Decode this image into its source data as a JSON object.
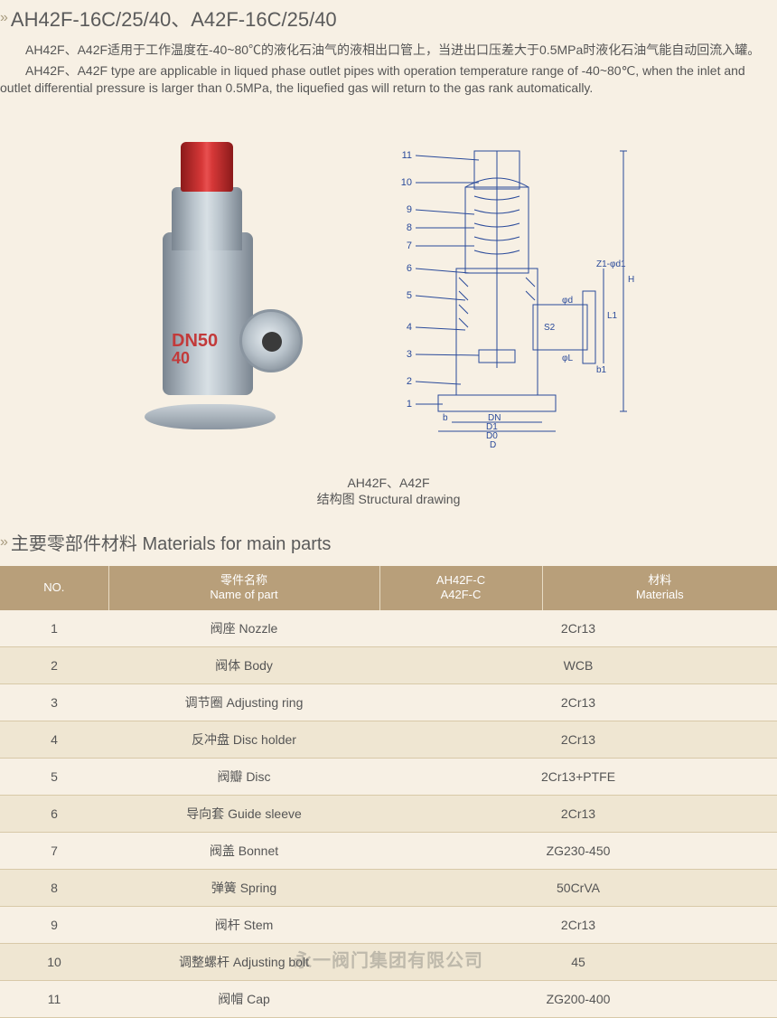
{
  "header": {
    "title": "AH42F-16C/25/40、A42F-16C/25/40"
  },
  "description": {
    "para_cn": "AH42F、A42F适用于工作温度在-40~80℃的液化石油气的液相出口管上，当进出口压差大于0.5MPa时液化石油气能自动回流入罐。",
    "para_en": "AH42F、A42F type are applicable in liqued phase outlet pipes with operation temperature range of -40~80℃, when the inlet and outlet differential pressure is larger than 0.5MPa, the liquefied gas will return to the gas rank automatically."
  },
  "valve_marking": {
    "line1": "DN50",
    "line2": "40"
  },
  "drawing_callouts": [
    "11",
    "10",
    "9",
    "8",
    "7",
    "6",
    "5",
    "4",
    "3",
    "2",
    "1"
  ],
  "drawing_dims": [
    "H",
    "Z1-φd1",
    "b1",
    "φd",
    "φL",
    "L1",
    "S2",
    "b",
    "DN",
    "D1",
    "D0",
    "D"
  ],
  "figure_caption": {
    "l1": "AH42F、A42F",
    "l2": "结构图  Structural drawing"
  },
  "section": {
    "materials_title": "主要零部件材料  Materials for main parts"
  },
  "materials_table": {
    "headers": {
      "no": "NO.",
      "name_cn": "零件名称",
      "name_en": "Name of part",
      "model_l1": "AH42F-C",
      "model_l2": "A42F-C",
      "mat_cn": "材料",
      "mat_en": "Materials"
    },
    "rows": [
      {
        "no": "1",
        "name": "阀座  Nozzle",
        "material": "2Cr13"
      },
      {
        "no": "2",
        "name": "阀体  Body",
        "material": "WCB"
      },
      {
        "no": "3",
        "name": "调节圈  Adjusting ring",
        "material": "2Cr13"
      },
      {
        "no": "4",
        "name": "反冲盘  Disc holder",
        "material": "2Cr13"
      },
      {
        "no": "5",
        "name": "阀瓣  Disc",
        "material": "2Cr13+PTFE"
      },
      {
        "no": "6",
        "name": "导向套  Guide sleeve",
        "material": "2Cr13"
      },
      {
        "no": "7",
        "name": "阀盖  Bonnet",
        "material": "ZG230-450"
      },
      {
        "no": "8",
        "name": "弹簧  Spring",
        "material": "50CrVA"
      },
      {
        "no": "9",
        "name": "阀杆  Stem",
        "material": "2Cr13"
      },
      {
        "no": "10",
        "name": "调整螺杆  Adjusting bolt",
        "material": "45"
      },
      {
        "no": "11",
        "name": "阀帽  Cap",
        "material": "ZG200-400"
      }
    ]
  },
  "watermark": "永一阀门集团有限公司",
  "style": {
    "page_bg": "#f7f0e4",
    "header_color": "#5a5a5a",
    "text_color": "#555555",
    "table_header_bg": "#b89f7a",
    "table_header_fg": "#ffffff",
    "row_alt_bg": "#efe6d2",
    "row_border": "#d8c9a8",
    "valve_cap_color": "#d63838",
    "valve_body_color": "#b8c2ca",
    "marking_color": "#c23a3a",
    "drawing_stroke": "#2a4a9a",
    "chevron_color": "#a89b7e"
  }
}
